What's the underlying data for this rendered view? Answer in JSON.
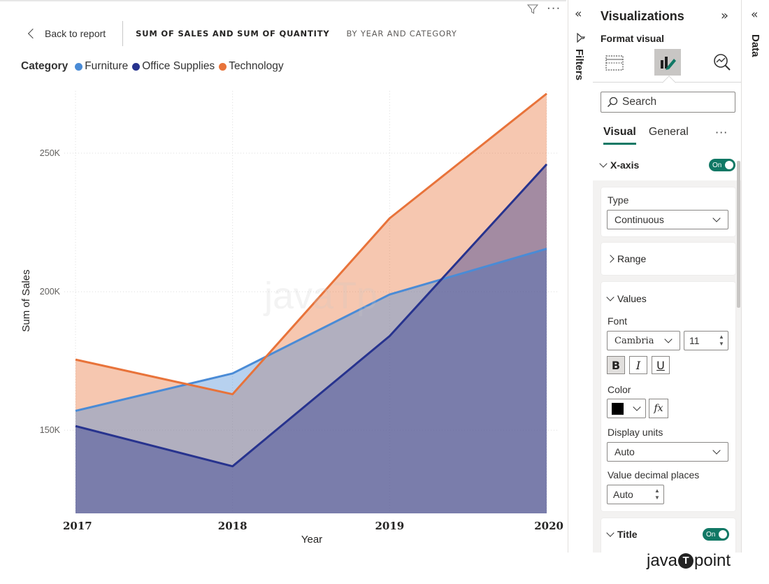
{
  "header": {
    "back_label": "Back to report",
    "title_main": "SUM OF SALES AND SUM OF QUANTITY",
    "title_sub": "BY YEAR AND CATEGORY"
  },
  "legend": {
    "title": "Category",
    "items": [
      {
        "label": "Furniture",
        "color": "#4a8bd6"
      },
      {
        "label": "Office Supplies",
        "color": "#27338e"
      },
      {
        "label": "Technology",
        "color": "#e8733a"
      }
    ]
  },
  "watermark": "javaTp",
  "chart_data": {
    "type": "area",
    "title": "",
    "xlabel": "Year",
    "ylabel": "Sum of Sales",
    "categories": [
      "2017",
      "2018",
      "2019",
      "2020"
    ],
    "yticks": [
      "150K",
      "200K",
      "250K"
    ],
    "ylim": [
      120000,
      275000
    ],
    "grid": true,
    "series": [
      {
        "name": "Furniture",
        "color": "#4a8bd6",
        "values": [
          157000,
          170500,
          199000,
          215500
        ]
      },
      {
        "name": "Office Supplies",
        "color": "#27338e",
        "values": [
          151500,
          137000,
          184000,
          246000
        ]
      },
      {
        "name": "Technology",
        "color": "#e8733a",
        "values": [
          175500,
          163000,
          226500,
          271500
        ]
      }
    ]
  },
  "filters_pane": {
    "label": "Filters"
  },
  "viz_pane": {
    "title": "Visualizations",
    "subtitle": "Format visual",
    "search_placeholder": "Search",
    "tabs": [
      "Visual",
      "General"
    ],
    "xaxis": {
      "label": "X-axis",
      "toggle": "On"
    },
    "type": {
      "label": "Type",
      "value": "Continuous"
    },
    "range": {
      "label": "Range"
    },
    "values": {
      "label": "Values",
      "font_label": "Font",
      "font_family": "Cambria",
      "font_size": "11",
      "bold": "B",
      "italic": "I",
      "underline": "U",
      "color_label": "Color",
      "fx": "fx",
      "display_units_label": "Display units",
      "display_units_value": "Auto",
      "decimal_label": "Value decimal places",
      "decimal_value": "Auto"
    },
    "title_section": {
      "label": "Title",
      "toggle": "On"
    }
  },
  "data_pane": {
    "label": "Data"
  },
  "brand": {
    "prefix": "java",
    "mark": "T",
    "suffix": "point"
  }
}
